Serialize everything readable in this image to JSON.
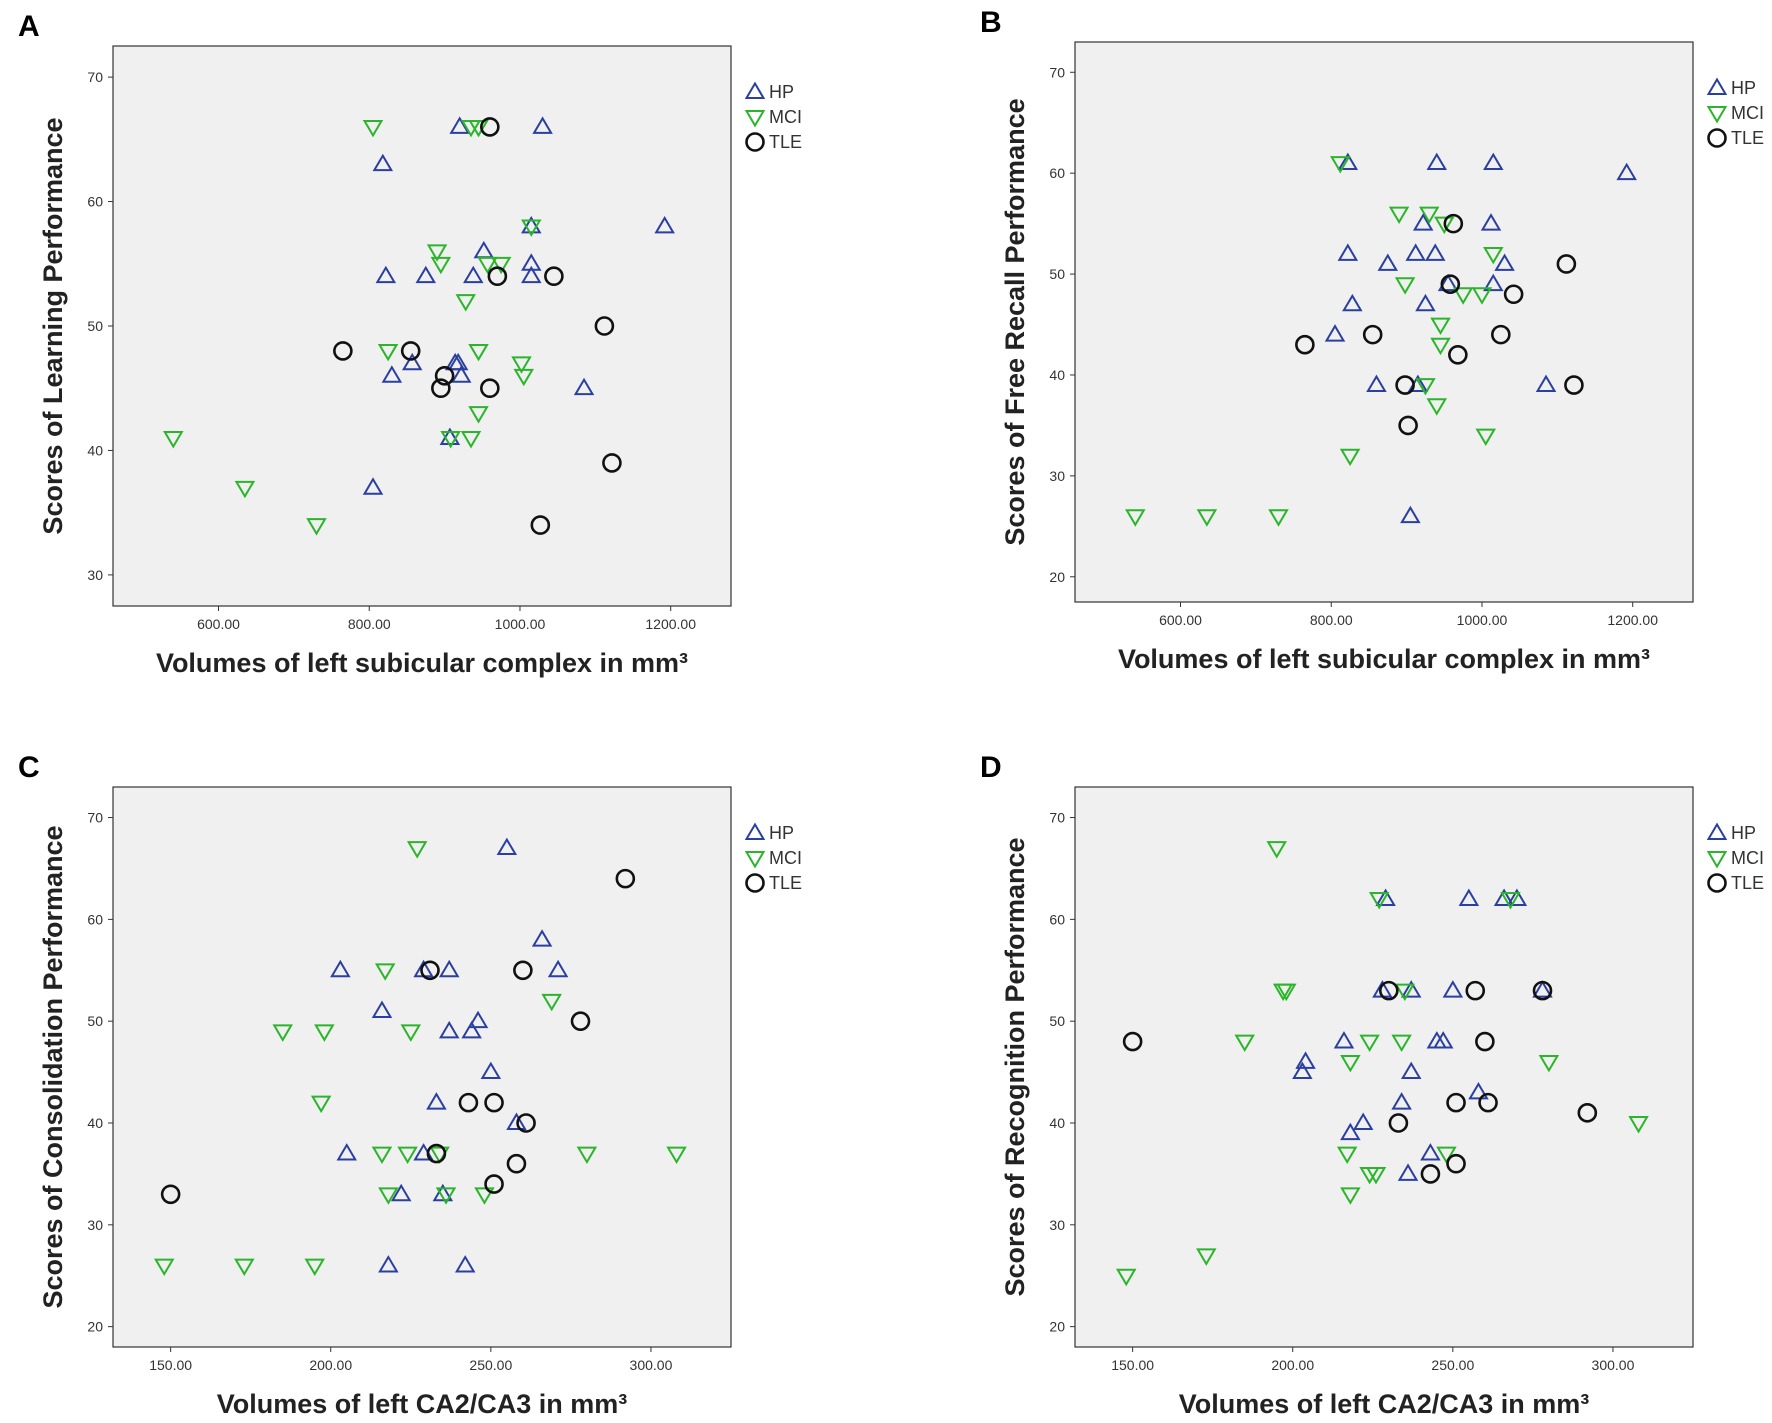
{
  "colors": {
    "HP": "#2a3fa0",
    "MCI": "#2ab52a",
    "TLE": "#111111",
    "plot_bg": "#f0f0f0"
  },
  "legend": [
    {
      "name": "HP",
      "marker": "triangle-up"
    },
    {
      "name": "MCI",
      "marker": "triangle-down"
    },
    {
      "name": "TLE",
      "marker": "circle"
    }
  ],
  "chart_data": [
    {
      "panel": "A",
      "type": "scatter",
      "xlabel": "Volumes of left subicular complex in mm³",
      "ylabel": "Scores of Learning Performance",
      "xlim": [
        460,
        1280
      ],
      "ylim": [
        27.5,
        72.5
      ],
      "xticks": [
        600,
        800,
        1000,
        1200
      ],
      "xtick_labels": [
        "600.00",
        "800.00",
        "1000.00",
        "1200.00"
      ],
      "yticks": [
        30,
        40,
        50,
        60,
        70
      ],
      "ytick_labels": [
        "30",
        "40",
        "50",
        "60",
        "70"
      ],
      "series": [
        {
          "name": "HP",
          "points": [
            [
              920,
              66
            ],
            [
              1030,
              66
            ],
            [
              818,
              63
            ],
            [
              1192,
              58
            ],
            [
              1015,
              58
            ],
            [
              822,
              54
            ],
            [
              875,
              54
            ],
            [
              938,
              54
            ],
            [
              952,
              56
            ],
            [
              1015,
              55
            ],
            [
              1015,
              54
            ],
            [
              830,
              46
            ],
            [
              857,
              47
            ],
            [
              914,
              47
            ],
            [
              918,
              47
            ],
            [
              922,
              46
            ],
            [
              1085,
              45
            ],
            [
              907,
              41
            ],
            [
              805,
              37
            ]
          ]
        },
        {
          "name": "MCI",
          "points": [
            [
              805,
              66
            ],
            [
              935,
              66
            ],
            [
              945,
              66
            ],
            [
              1015,
              58
            ],
            [
              890,
              56
            ],
            [
              895,
              55
            ],
            [
              957,
              55
            ],
            [
              975,
              55
            ],
            [
              928,
              52
            ],
            [
              825,
              48
            ],
            [
              945,
              48
            ],
            [
              1002,
              47
            ],
            [
              1005,
              46
            ],
            [
              945,
              43
            ],
            [
              908,
              41
            ],
            [
              935,
              41
            ],
            [
              540,
              41
            ],
            [
              635,
              37
            ],
            [
              730,
              34
            ]
          ]
        },
        {
          "name": "TLE",
          "points": [
            [
              960,
              66
            ],
            [
              970,
              54
            ],
            [
              1045,
              54
            ],
            [
              765,
              48
            ],
            [
              855,
              48
            ],
            [
              900,
              46
            ],
            [
              895,
              45
            ],
            [
              960,
              45
            ],
            [
              1112,
              50
            ],
            [
              1122,
              39
            ],
            [
              1027,
              34
            ]
          ]
        }
      ]
    },
    {
      "panel": "B",
      "type": "scatter",
      "xlabel": "Volumes of left subicular complex in mm³",
      "ylabel": "Scores of Free Recall Performance",
      "xlim": [
        460,
        1280
      ],
      "ylim": [
        17.5,
        73
      ],
      "xticks": [
        600,
        800,
        1000,
        1200
      ],
      "xtick_labels": [
        "600.00",
        "800.00",
        "1000.00",
        "1200.00"
      ],
      "yticks": [
        20,
        30,
        40,
        50,
        60,
        70
      ],
      "ytick_labels": [
        "20",
        "30",
        "40",
        "50",
        "60",
        "70"
      ],
      "series": [
        {
          "name": "HP",
          "points": [
            [
              822,
              61
            ],
            [
              940,
              61
            ],
            [
              1015,
              61
            ],
            [
              1192,
              60
            ],
            [
              922,
              55
            ],
            [
              1012,
              55
            ],
            [
              822,
              52
            ],
            [
              912,
              52
            ],
            [
              938,
              52
            ],
            [
              875,
              51
            ],
            [
              1030,
              51
            ],
            [
              828,
              47
            ],
            [
              925,
              47
            ],
            [
              955,
              49
            ],
            [
              1015,
              49
            ],
            [
              805,
              44
            ],
            [
              860,
              39
            ],
            [
              915,
              39
            ],
            [
              1085,
              39
            ],
            [
              905,
              26
            ]
          ]
        },
        {
          "name": "MCI",
          "points": [
            [
              812,
              61
            ],
            [
              890,
              56
            ],
            [
              930,
              56
            ],
            [
              950,
              55
            ],
            [
              1015,
              52
            ],
            [
              898,
              49
            ],
            [
              975,
              48
            ],
            [
              1000,
              48
            ],
            [
              945,
              45
            ],
            [
              945,
              43
            ],
            [
              925,
              39
            ],
            [
              940,
              37
            ],
            [
              1005,
              34
            ],
            [
              825,
              32
            ],
            [
              540,
              26
            ],
            [
              635,
              26
            ],
            [
              730,
              26
            ]
          ]
        },
        {
          "name": "TLE",
          "points": [
            [
              962,
              55
            ],
            [
              958,
              49
            ],
            [
              1042,
              48
            ],
            [
              1112,
              51
            ],
            [
              765,
              43
            ],
            [
              855,
              44
            ],
            [
              968,
              42
            ],
            [
              1025,
              44
            ],
            [
              898,
              39
            ],
            [
              902,
              35
            ],
            [
              1122,
              39
            ]
          ]
        }
      ]
    },
    {
      "panel": "C",
      "type": "scatter",
      "xlabel": "Volumes of left CA2/CA3 in mm³",
      "ylabel": "Scores of Consolidation Performance",
      "xlim": [
        132,
        325
      ],
      "ylim": [
        18,
        73
      ],
      "xticks": [
        150,
        200,
        250,
        300
      ],
      "xtick_labels": [
        "150.00",
        "200.00",
        "250.00",
        "300.00"
      ],
      "yticks": [
        20,
        30,
        40,
        50,
        60,
        70
      ],
      "ytick_labels": [
        "20",
        "30",
        "40",
        "50",
        "60",
        "70"
      ],
      "series": [
        {
          "name": "HP",
          "points": [
            [
              255,
              67
            ],
            [
              266,
              58
            ],
            [
              203,
              55
            ],
            [
              229,
              55
            ],
            [
              237,
              55
            ],
            [
              271,
              55
            ],
            [
              216,
              51
            ],
            [
              246,
              50
            ],
            [
              237,
              49
            ],
            [
              244,
              49
            ],
            [
              250,
              45
            ],
            [
              233,
              42
            ],
            [
              258,
              40
            ],
            [
              205,
              37
            ],
            [
              229,
              37
            ],
            [
              222,
              33
            ],
            [
              235,
              33
            ],
            [
              218,
              26
            ],
            [
              242,
              26
            ]
          ]
        },
        {
          "name": "MCI",
          "points": [
            [
              227,
              67
            ],
            [
              217,
              55
            ],
            [
              269,
              52
            ],
            [
              185,
              49
            ],
            [
              198,
              49
            ],
            [
              225,
              49
            ],
            [
              197,
              42
            ],
            [
              216,
              37
            ],
            [
              224,
              37
            ],
            [
              234,
              37
            ],
            [
              280,
              37
            ],
            [
              308,
              37
            ],
            [
              218,
              33
            ],
            [
              236,
              33
            ],
            [
              248,
              33
            ],
            [
              148,
              26
            ],
            [
              173,
              26
            ],
            [
              195,
              26
            ]
          ]
        },
        {
          "name": "TLE",
          "points": [
            [
              292,
              64
            ],
            [
              231,
              55
            ],
            [
              260,
              55
            ],
            [
              278,
              50
            ],
            [
              243,
              42
            ],
            [
              251,
              42
            ],
            [
              261,
              40
            ],
            [
              233,
              37
            ],
            [
              258,
              36
            ],
            [
              251,
              34
            ],
            [
              150,
              33
            ]
          ]
        }
      ]
    },
    {
      "panel": "D",
      "type": "scatter",
      "xlabel": "Volumes of left CA2/CA3 in mm³",
      "ylabel": "Scores of Recognition Performance",
      "xlim": [
        132,
        325
      ],
      "ylim": [
        18,
        73
      ],
      "xticks": [
        150,
        200,
        250,
        300
      ],
      "xtick_labels": [
        "150.00",
        "200.00",
        "250.00",
        "300.00"
      ],
      "yticks": [
        20,
        30,
        40,
        50,
        60,
        70
      ],
      "ytick_labels": [
        "20",
        "30",
        "40",
        "50",
        "60",
        "70"
      ],
      "series": [
        {
          "name": "HP",
          "points": [
            [
              229,
              62
            ],
            [
              255,
              62
            ],
            [
              266,
              62
            ],
            [
              270,
              62
            ],
            [
              228,
              53
            ],
            [
              237,
              53
            ],
            [
              250,
              53
            ],
            [
              278,
              53
            ],
            [
              216,
              48
            ],
            [
              245,
              48
            ],
            [
              247,
              48
            ],
            [
              204,
              46
            ],
            [
              203,
              45
            ],
            [
              237,
              45
            ],
            [
              258,
              43
            ],
            [
              234,
              42
            ],
            [
              222,
              40
            ],
            [
              218,
              39
            ],
            [
              243,
              37
            ],
            [
              236,
              35
            ]
          ]
        },
        {
          "name": "MCI",
          "points": [
            [
              195,
              67
            ],
            [
              227,
              62
            ],
            [
              268,
              62
            ],
            [
              197,
              53
            ],
            [
              198,
              53
            ],
            [
              235,
              53
            ],
            [
              185,
              48
            ],
            [
              224,
              48
            ],
            [
              234,
              48
            ],
            [
              218,
              46
            ],
            [
              280,
              46
            ],
            [
              308,
              40
            ],
            [
              217,
              37
            ],
            [
              248,
              37
            ],
            [
              224,
              35
            ],
            [
              226,
              35
            ],
            [
              218,
              33
            ],
            [
              173,
              27
            ],
            [
              148,
              25
            ]
          ]
        },
        {
          "name": "TLE",
          "points": [
            [
              230,
              53
            ],
            [
              257,
              53
            ],
            [
              278,
              53
            ],
            [
              150,
              48
            ],
            [
              260,
              48
            ],
            [
              251,
              42
            ],
            [
              261,
              42
            ],
            [
              292,
              41
            ],
            [
              233,
              40
            ],
            [
              251,
              36
            ],
            [
              243,
              35
            ]
          ]
        }
      ]
    }
  ]
}
